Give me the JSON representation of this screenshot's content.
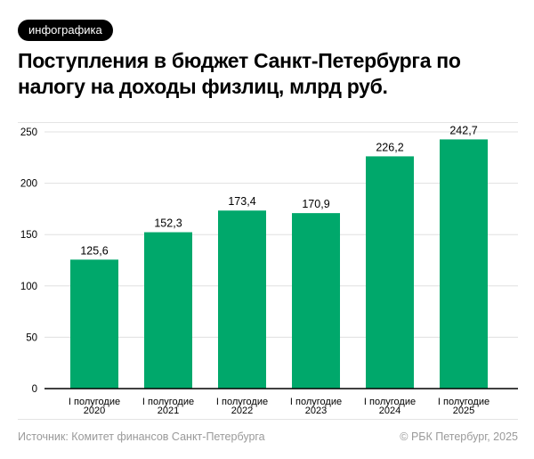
{
  "badge": "инфографика",
  "title": "Поступления в бюджет Санкт-Петербурга по налогу на доходы физлиц, млрд руб.",
  "source": "Источник: Комитет финансов Санкт-Петербурга",
  "copyright": "© РБК Петербург, 2025",
  "colors": {
    "bar": "#00a86b",
    "grid": "#e0e0e0",
    "axis": "#000000"
  },
  "chart_data": {
    "type": "bar",
    "categories": [
      [
        "I полугодие",
        "2020"
      ],
      [
        "I полугодие",
        "2021"
      ],
      [
        "I полугодие",
        "2022"
      ],
      [
        "I полугодие",
        "2023"
      ],
      [
        "I полугодие",
        "2024"
      ],
      [
        "I полугодие",
        "2025"
      ]
    ],
    "values": [
      125.6,
      152.3,
      173.4,
      170.9,
      226.2,
      242.7
    ],
    "data_labels": [
      "125,6",
      "152,3",
      "173,4",
      "170,9",
      "226,2",
      "242,7"
    ],
    "yticks": [
      0,
      50,
      100,
      150,
      200,
      250
    ],
    "ylim": [
      0,
      250
    ],
    "grid": true,
    "xlabel": "",
    "ylabel": ""
  }
}
